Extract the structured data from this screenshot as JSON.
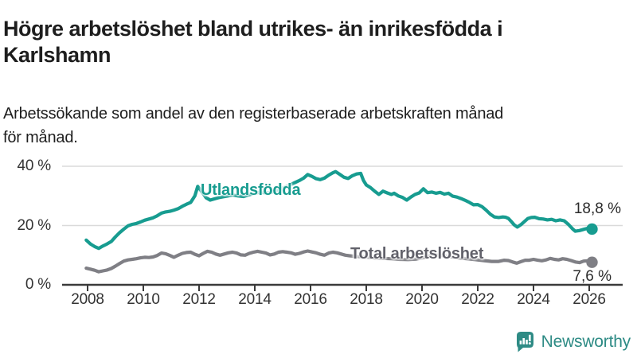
{
  "chart_data": {
    "type": "line",
    "title": "Högre arbetslöshet bland utrikes- än inrikesfödda i\nKarlshamn",
    "subtitle": "Arbetssökande som andel av den registerbaserade arbetskraften månad\nför månad.",
    "xlabel": "",
    "ylabel": "",
    "xlim": [
      2007.1,
      2027.2
    ],
    "ylim": [
      0,
      42
    ],
    "grid": "horizontal-only",
    "legend_position": "inline-labels",
    "axis_color": "#3a3a3a",
    "grid_color": "#dadada",
    "yticks": [
      {
        "value": 40,
        "label": "40 %"
      },
      {
        "value": 20,
        "label": "20 %"
      },
      {
        "value": 0,
        "label": "0 %"
      }
    ],
    "xticks": [
      2008,
      2010,
      2012,
      2014,
      2016,
      2018,
      2020,
      2022,
      2024,
      2026
    ],
    "series": [
      {
        "name": "Utlandsfödda",
        "color": "#179c90",
        "end_label": "18,8 %",
        "end_value": 18.8,
        "points": [
          [
            2007.95,
            15.1
          ],
          [
            2008.1,
            13.8
          ],
          [
            2008.25,
            12.9
          ],
          [
            2008.4,
            12.3
          ],
          [
            2008.55,
            13.1
          ],
          [
            2008.7,
            13.8
          ],
          [
            2008.85,
            14.6
          ],
          [
            2009.0,
            16.2
          ],
          [
            2009.15,
            17.6
          ],
          [
            2009.3,
            18.8
          ],
          [
            2009.45,
            19.9
          ],
          [
            2009.6,
            20.4
          ],
          [
            2009.75,
            20.7
          ],
          [
            2009.9,
            21.2
          ],
          [
            2010.05,
            21.8
          ],
          [
            2010.2,
            22.2
          ],
          [
            2010.35,
            22.6
          ],
          [
            2010.5,
            23.3
          ],
          [
            2010.65,
            24.2
          ],
          [
            2010.8,
            24.6
          ],
          [
            2010.95,
            24.8
          ],
          [
            2011.1,
            25.2
          ],
          [
            2011.25,
            25.7
          ],
          [
            2011.4,
            26.5
          ],
          [
            2011.55,
            27.2
          ],
          [
            2011.7,
            27.8
          ],
          [
            2011.85,
            30.0
          ],
          [
            2011.95,
            33.2
          ],
          [
            2012.1,
            31.4
          ],
          [
            2012.25,
            29.4
          ],
          [
            2012.4,
            28.6
          ],
          [
            2012.55,
            29.0
          ],
          [
            2012.7,
            29.4
          ],
          [
            2012.85,
            29.7
          ],
          [
            2013.0,
            29.9
          ],
          [
            2013.2,
            30.3
          ],
          [
            2013.4,
            30.0
          ],
          [
            2013.6,
            29.8
          ],
          [
            2013.8,
            30.4
          ],
          [
            2014.0,
            30.9
          ],
          [
            2014.2,
            31.3
          ],
          [
            2014.4,
            31.0
          ],
          [
            2014.6,
            31.2
          ],
          [
            2014.8,
            31.9
          ],
          [
            2015.0,
            32.6
          ],
          [
            2015.2,
            33.4
          ],
          [
            2015.4,
            34.3
          ],
          [
            2015.6,
            35.2
          ],
          [
            2015.75,
            36.0
          ],
          [
            2015.9,
            37.2
          ],
          [
            2016.05,
            36.6
          ],
          [
            2016.2,
            35.8
          ],
          [
            2016.35,
            35.5
          ],
          [
            2016.5,
            36.0
          ],
          [
            2016.65,
            37.0
          ],
          [
            2016.8,
            37.8
          ],
          [
            2016.9,
            38.2
          ],
          [
            2017.05,
            37.3
          ],
          [
            2017.2,
            36.3
          ],
          [
            2017.35,
            35.9
          ],
          [
            2017.5,
            36.8
          ],
          [
            2017.65,
            37.4
          ],
          [
            2017.8,
            37.6
          ],
          [
            2017.9,
            35.2
          ],
          [
            2018.0,
            33.7
          ],
          [
            2018.15,
            32.8
          ],
          [
            2018.3,
            31.6
          ],
          [
            2018.45,
            30.5
          ],
          [
            2018.6,
            31.6
          ],
          [
            2018.75,
            31.0
          ],
          [
            2018.9,
            30.5
          ],
          [
            2019.0,
            30.9
          ],
          [
            2019.15,
            30.0
          ],
          [
            2019.3,
            29.5
          ],
          [
            2019.45,
            28.6
          ],
          [
            2019.6,
            29.6
          ],
          [
            2019.75,
            30.5
          ],
          [
            2019.9,
            31.0
          ],
          [
            2020.05,
            32.4
          ],
          [
            2020.2,
            31.1
          ],
          [
            2020.35,
            31.3
          ],
          [
            2020.5,
            30.9
          ],
          [
            2020.65,
            31.2
          ],
          [
            2020.8,
            30.6
          ],
          [
            2020.95,
            30.9
          ],
          [
            2021.1,
            29.9
          ],
          [
            2021.25,
            29.6
          ],
          [
            2021.4,
            29.1
          ],
          [
            2021.55,
            28.5
          ],
          [
            2021.7,
            27.8
          ],
          [
            2021.85,
            27.0
          ],
          [
            2022.0,
            27.1
          ],
          [
            2022.15,
            26.4
          ],
          [
            2022.3,
            25.2
          ],
          [
            2022.45,
            23.8
          ],
          [
            2022.6,
            22.9
          ],
          [
            2022.75,
            22.7
          ],
          [
            2022.9,
            22.9
          ],
          [
            2023.0,
            22.8
          ],
          [
            2023.1,
            22.4
          ],
          [
            2023.2,
            21.4
          ],
          [
            2023.3,
            20.3
          ],
          [
            2023.42,
            19.5
          ],
          [
            2023.55,
            20.3
          ],
          [
            2023.68,
            21.4
          ],
          [
            2023.8,
            22.4
          ],
          [
            2023.92,
            22.7
          ],
          [
            2024.05,
            22.8
          ],
          [
            2024.2,
            22.3
          ],
          [
            2024.35,
            22.2
          ],
          [
            2024.5,
            21.9
          ],
          [
            2024.65,
            22.1
          ],
          [
            2024.8,
            21.6
          ],
          [
            2024.95,
            21.9
          ],
          [
            2025.1,
            21.6
          ],
          [
            2025.25,
            20.4
          ],
          [
            2025.4,
            18.9
          ],
          [
            2025.5,
            18.1
          ],
          [
            2025.65,
            18.3
          ],
          [
            2025.8,
            18.7
          ],
          [
            2025.95,
            19.1
          ],
          [
            2026.1,
            18.8
          ]
        ]
      },
      {
        "name": "Total arbetslöshet",
        "color": "#7f7f85",
        "label_color": "#61616a",
        "end_label": "7,6 %",
        "end_value": 7.6,
        "points": [
          [
            2007.95,
            5.6
          ],
          [
            2008.1,
            5.3
          ],
          [
            2008.25,
            4.9
          ],
          [
            2008.4,
            4.4
          ],
          [
            2008.55,
            4.7
          ],
          [
            2008.7,
            5.0
          ],
          [
            2008.85,
            5.5
          ],
          [
            2009.0,
            6.3
          ],
          [
            2009.15,
            7.2
          ],
          [
            2009.3,
            8.0
          ],
          [
            2009.45,
            8.4
          ],
          [
            2009.6,
            8.6
          ],
          [
            2009.75,
            8.8
          ],
          [
            2009.9,
            9.1
          ],
          [
            2010.05,
            9.3
          ],
          [
            2010.2,
            9.2
          ],
          [
            2010.35,
            9.4
          ],
          [
            2010.5,
            9.9
          ],
          [
            2010.65,
            10.7
          ],
          [
            2010.8,
            10.5
          ],
          [
            2010.95,
            9.9
          ],
          [
            2011.1,
            9.3
          ],
          [
            2011.25,
            10.0
          ],
          [
            2011.4,
            10.6
          ],
          [
            2011.55,
            10.9
          ],
          [
            2011.7,
            11.0
          ],
          [
            2011.85,
            10.3
          ],
          [
            2012.0,
            9.8
          ],
          [
            2012.15,
            10.6
          ],
          [
            2012.3,
            11.3
          ],
          [
            2012.45,
            11.0
          ],
          [
            2012.6,
            10.4
          ],
          [
            2012.75,
            10.0
          ],
          [
            2012.9,
            10.4
          ],
          [
            2013.05,
            10.8
          ],
          [
            2013.2,
            11.0
          ],
          [
            2013.35,
            10.7
          ],
          [
            2013.5,
            10.1
          ],
          [
            2013.65,
            10.0
          ],
          [
            2013.8,
            10.6
          ],
          [
            2013.95,
            11.0
          ],
          [
            2014.1,
            11.3
          ],
          [
            2014.25,
            11.0
          ],
          [
            2014.4,
            10.7
          ],
          [
            2014.55,
            10.1
          ],
          [
            2014.7,
            10.4
          ],
          [
            2014.85,
            11.0
          ],
          [
            2015.0,
            11.2
          ],
          [
            2015.15,
            11.0
          ],
          [
            2015.3,
            10.8
          ],
          [
            2015.45,
            10.3
          ],
          [
            2015.6,
            10.6
          ],
          [
            2015.75,
            11.1
          ],
          [
            2015.9,
            11.4
          ],
          [
            2016.05,
            11.1
          ],
          [
            2016.2,
            10.8
          ],
          [
            2016.35,
            10.3
          ],
          [
            2016.5,
            10.0
          ],
          [
            2016.65,
            10.7
          ],
          [
            2016.8,
            11.0
          ],
          [
            2016.95,
            10.8
          ],
          [
            2017.1,
            10.4
          ],
          [
            2017.25,
            10.0
          ],
          [
            2017.4,
            9.8
          ],
          [
            2017.6,
            9.6
          ],
          [
            2017.8,
            9.5
          ],
          [
            2018.0,
            9.4
          ],
          [
            2018.3,
            9.1
          ],
          [
            2018.6,
            8.9
          ],
          [
            2018.9,
            8.8
          ],
          [
            2019.2,
            8.6
          ],
          [
            2019.5,
            8.5
          ],
          [
            2019.8,
            8.7
          ],
          [
            2020.1,
            9.3
          ],
          [
            2020.4,
            10.1
          ],
          [
            2020.7,
            9.9
          ],
          [
            2021.0,
            9.5
          ],
          [
            2021.3,
            9.1
          ],
          [
            2021.6,
            8.8
          ],
          [
            2021.9,
            8.5
          ],
          [
            2022.2,
            8.2
          ],
          [
            2022.5,
            7.9
          ],
          [
            2022.75,
            7.9
          ],
          [
            2022.95,
            8.3
          ],
          [
            2023.1,
            8.2
          ],
          [
            2023.25,
            7.7
          ],
          [
            2023.4,
            7.3
          ],
          [
            2023.55,
            7.8
          ],
          [
            2023.7,
            8.3
          ],
          [
            2023.85,
            8.3
          ],
          [
            2024.0,
            8.6
          ],
          [
            2024.15,
            8.3
          ],
          [
            2024.3,
            8.1
          ],
          [
            2024.45,
            8.4
          ],
          [
            2024.6,
            8.9
          ],
          [
            2024.75,
            8.6
          ],
          [
            2024.9,
            8.4
          ],
          [
            2025.05,
            8.8
          ],
          [
            2025.2,
            8.6
          ],
          [
            2025.35,
            8.2
          ],
          [
            2025.5,
            7.7
          ],
          [
            2025.65,
            7.5
          ],
          [
            2025.8,
            8.0
          ],
          [
            2025.95,
            8.1
          ],
          [
            2026.1,
            7.6
          ]
        ]
      }
    ]
  },
  "footer": {
    "brand": "Newsworthy",
    "brand_color": "#2e8b85",
    "logo_icon": "bar-chart-speech-bubble"
  }
}
